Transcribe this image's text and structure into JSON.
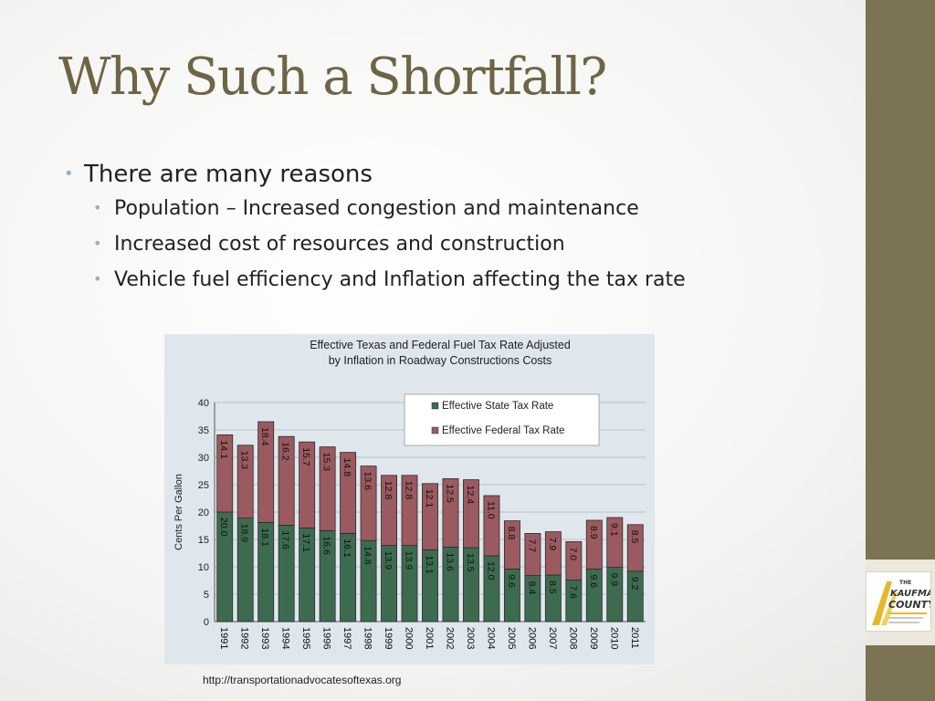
{
  "slide": {
    "title": "Why Such a Shortfall?",
    "bullets": [
      {
        "text": "There are many reasons",
        "level": 1
      },
      {
        "text": "Population  – Increased congestion and maintenance",
        "level": 2
      },
      {
        "text": "Increased cost of resources and construction",
        "level": 2
      },
      {
        "text": "Vehicle fuel efficiency and Inflation affecting the tax rate",
        "level": 2
      }
    ],
    "source": "http://transportationadvocatesoftexas.org"
  },
  "logo": {
    "line1": "THE",
    "line2": "KAUFMAN",
    "line3": "COUNTY"
  },
  "chart_data": {
    "type": "bar",
    "stacked": true,
    "title_lines": [
      "Effective Texas and Federal Fuel Tax Rate Adjusted",
      "by Inflation in Roadway Constructions Costs"
    ],
    "ylabel": "Cents Per Gallon",
    "xlabel": "",
    "ylim": [
      0,
      40
    ],
    "yticks": [
      0,
      5,
      10,
      15,
      20,
      25,
      30,
      35,
      40
    ],
    "grid": true,
    "legend_position": "top-right",
    "categories": [
      "1991",
      "1992",
      "1993",
      "1994",
      "1995",
      "1996",
      "1997",
      "1998",
      "1999",
      "2000",
      "2001",
      "2002",
      "2003",
      "2004",
      "2005",
      "2006",
      "2007",
      "2008",
      "2009",
      "2010",
      "2011"
    ],
    "series": [
      {
        "name": "Effective State Tax Rate",
        "color": "#3d6b50",
        "values": [
          20.0,
          18.9,
          18.1,
          17.6,
          17.1,
          16.6,
          16.1,
          14.8,
          13.9,
          13.9,
          13.1,
          13.6,
          13.5,
          12.0,
          9.6,
          8.4,
          8.5,
          7.6,
          9.6,
          9.9,
          9.2
        ]
      },
      {
        "name": "Effective Federal Tax Rate",
        "color": "#9a5a60",
        "values": [
          14.1,
          13.3,
          18.4,
          16.2,
          15.7,
          15.3,
          14.8,
          13.6,
          12.8,
          12.8,
          12.1,
          12.5,
          12.4,
          11.0,
          8.8,
          7.7,
          7.9,
          7.0,
          8.9,
          9.1,
          8.5
        ]
      }
    ]
  }
}
